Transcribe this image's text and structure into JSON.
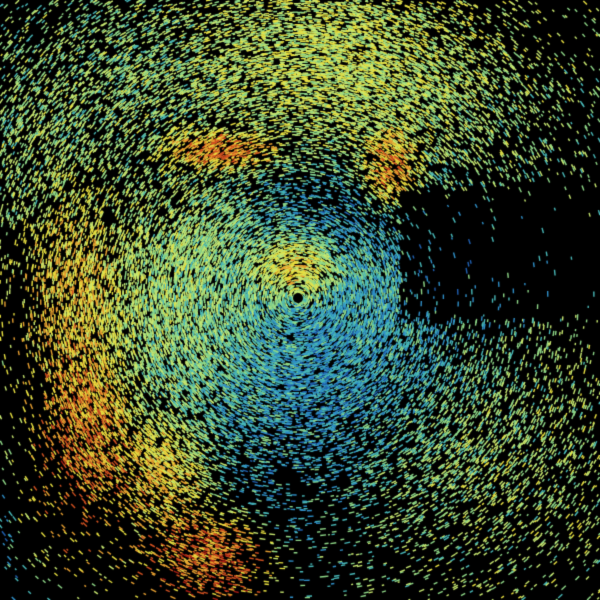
{
  "image": {
    "kind": "radar-reflectivity-sweep",
    "background_color": "#000000",
    "palette": [
      "#1f5fb0",
      "#2f8fc8",
      "#48b8b8",
      "#8fd888",
      "#c8e870",
      "#e8e040",
      "#e8a030",
      "#d05020",
      "#a81c14"
    ]
  }
}
